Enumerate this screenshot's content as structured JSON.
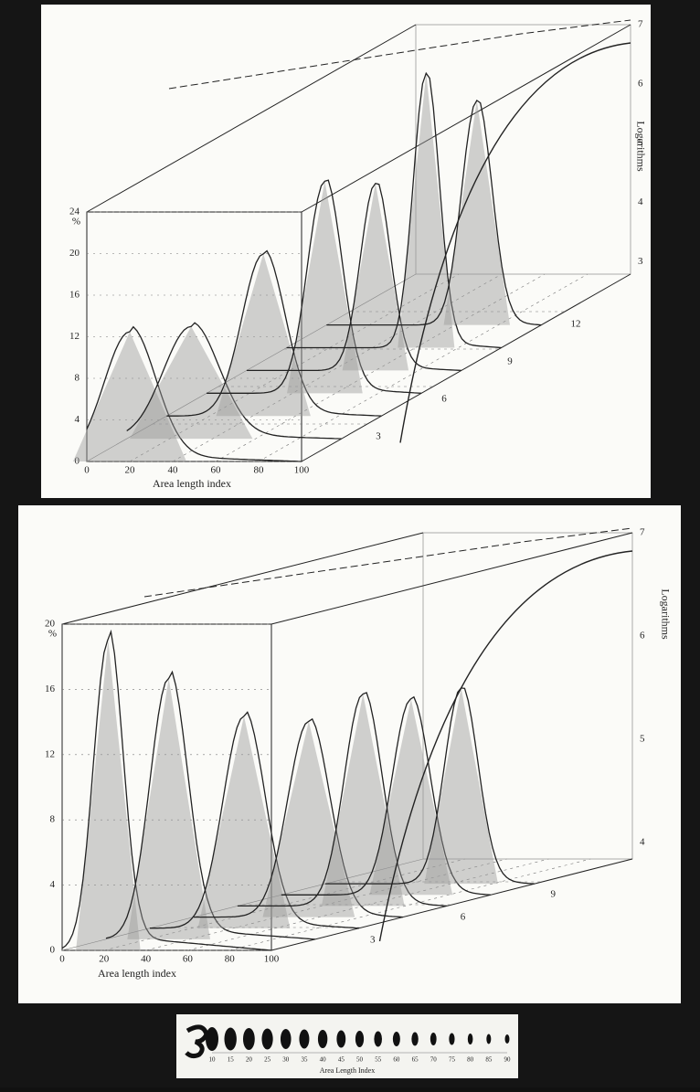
{
  "top_panel": {
    "y_ticks": [
      "24",
      "20",
      "16",
      "12",
      "8",
      "4",
      "0"
    ],
    "y_unit": "%",
    "x_ticks": [
      "0",
      "20",
      "40",
      "60",
      "80",
      "100"
    ],
    "x_label": "Area length index",
    "depth_ticks": [
      "3",
      "6",
      "9",
      "12"
    ],
    "right_ticks": [
      "7",
      "6",
      "5",
      "4",
      "3"
    ],
    "right_label": "Logarithms"
  },
  "middle_panel": {
    "y_ticks": [
      "20",
      "16",
      "12",
      "8",
      "4",
      "0"
    ],
    "y_unit": "%",
    "x_ticks": [
      "0",
      "20",
      "40",
      "60",
      "80",
      "100"
    ],
    "x_label": "Area length index",
    "depth_ticks": [
      "3",
      "6",
      "9"
    ],
    "right_ticks": [
      "7",
      "6",
      "5",
      "4"
    ],
    "right_label": "Logarithms"
  },
  "strip": {
    "ticks": [
      "10",
      "15",
      "20",
      "25",
      "30",
      "35",
      "40",
      "45",
      "50",
      "55",
      "60",
      "65",
      "70",
      "75",
      "80",
      "85",
      "90"
    ],
    "label": "Area Length Index"
  }
}
